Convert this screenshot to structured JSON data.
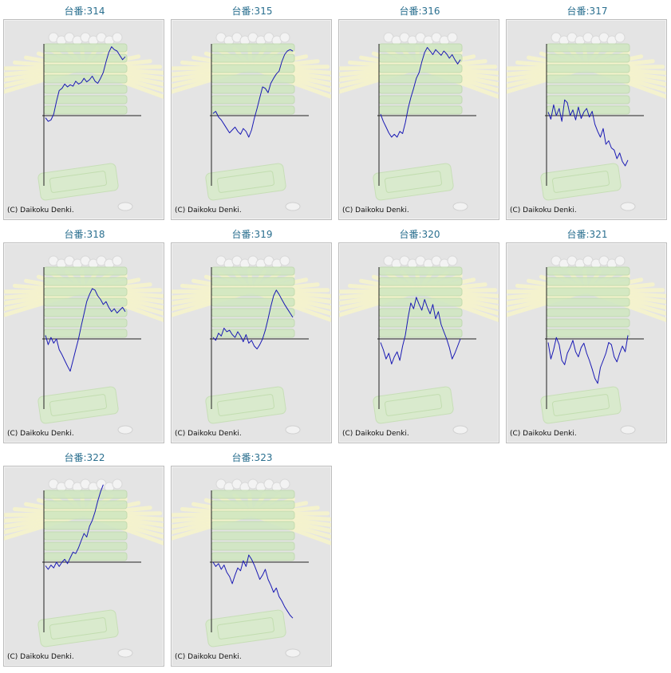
{
  "colors": {
    "title": "#2a6f8f",
    "line": "#1a1ab4",
    "axis": "#222222",
    "panel_bg": "#e4e4e4",
    "rays": "#f6f4cc",
    "machine": "#cfe7c0"
  },
  "chart_data": [
    {
      "type": "line",
      "title": "台番:314",
      "copyright": "(C) Daikoku Denki.",
      "values": [
        -3,
        -8,
        -6,
        2,
        20,
        35,
        38,
        44,
        40,
        43,
        41,
        48,
        44,
        46,
        52,
        47,
        50,
        55,
        48,
        45,
        52,
        60,
        75,
        88,
        96,
        92,
        90,
        84,
        78,
        82
      ]
    },
    {
      "type": "line",
      "title": "台番:315",
      "copyright": "(C) Daikoku Denki.",
      "values": [
        3,
        6,
        -2,
        -6,
        -12,
        -18,
        -24,
        -20,
        -16,
        -22,
        -26,
        -18,
        -22,
        -30,
        -20,
        -4,
        10,
        25,
        40,
        38,
        32,
        45,
        52,
        58,
        62,
        75,
        85,
        90,
        92,
        90
      ]
    },
    {
      "type": "line",
      "title": "台番:316",
      "copyright": "(C) Daikoku Denki.",
      "values": [
        2,
        -8,
        -16,
        -24,
        -30,
        -26,
        -30,
        -22,
        -25,
        -10,
        10,
        25,
        38,
        52,
        60,
        75,
        88,
        95,
        90,
        85,
        92,
        88,
        84,
        90,
        86,
        80,
        85,
        78,
        72,
        78
      ]
    },
    {
      "type": "line",
      "title": "台番:317",
      "copyright": "(C) Daikoku Denki.",
      "values": [
        5,
        -5,
        15,
        0,
        10,
        -8,
        22,
        18,
        0,
        8,
        -6,
        12,
        -4,
        5,
        10,
        -2,
        6,
        -12,
        -22,
        -30,
        -18,
        -40,
        -35,
        -45,
        -48,
        -60,
        -52,
        -64,
        -70,
        -62
      ]
    },
    {
      "type": "line",
      "title": "台番:318",
      "copyright": "(C) Daikoku Denki.",
      "values": [
        5,
        -8,
        2,
        -6,
        0,
        -15,
        -22,
        -30,
        -38,
        -45,
        -30,
        -15,
        0,
        18,
        35,
        52,
        62,
        70,
        68,
        60,
        55,
        48,
        52,
        44,
        38,
        42,
        36,
        40,
        44,
        38
      ]
    },
    {
      "type": "line",
      "title": "台番:319",
      "copyright": "(C) Daikoku Denki.",
      "values": [
        2,
        -2,
        8,
        4,
        15,
        10,
        12,
        6,
        2,
        10,
        4,
        -4,
        6,
        -6,
        -2,
        -10,
        -14,
        -8,
        0,
        12,
        28,
        45,
        60,
        68,
        62,
        55,
        48,
        42,
        36,
        30
      ]
    },
    {
      "type": "line",
      "title": "台番:320",
      "copyright": "(C) Daikoku Denki.",
      "values": [
        -5,
        -15,
        -28,
        -20,
        -35,
        -25,
        -18,
        -30,
        -10,
        5,
        30,
        50,
        42,
        58,
        48,
        40,
        55,
        44,
        35,
        48,
        28,
        38,
        20,
        10,
        0,
        -12,
        -28,
        -20,
        -10,
        0
      ]
    },
    {
      "type": "line",
      "title": "台番:321",
      "copyright": "(C) Daikoku Denki.",
      "values": [
        -5,
        -28,
        -15,
        2,
        -8,
        -30,
        -36,
        -20,
        -12,
        -2,
        -18,
        -25,
        -12,
        -6,
        -20,
        -30,
        -42,
        -55,
        -62,
        -40,
        -30,
        -20,
        -5,
        -8,
        -25,
        -32,
        -20,
        -10,
        -18,
        5
      ]
    },
    {
      "type": "line",
      "title": "台番:322",
      "copyright": "(C) Daikoku Denki.",
      "values": [
        -5,
        -10,
        -4,
        -8,
        0,
        -6,
        0,
        4,
        -2,
        6,
        14,
        12,
        20,
        30,
        40,
        35,
        50,
        58,
        70,
        85,
        98,
        108
      ]
    },
    {
      "type": "line",
      "title": "台番:323",
      "copyright": "(C) Daikoku Denki.",
      "values": [
        0,
        -6,
        -2,
        -10,
        -4,
        -14,
        -20,
        -30,
        -18,
        -8,
        -12,
        2,
        -6,
        10,
        4,
        -4,
        -14,
        -24,
        -18,
        -10,
        -24,
        -32,
        -42,
        -36,
        -48,
        -54,
        -62,
        -68,
        -74,
        -78
      ]
    }
  ]
}
